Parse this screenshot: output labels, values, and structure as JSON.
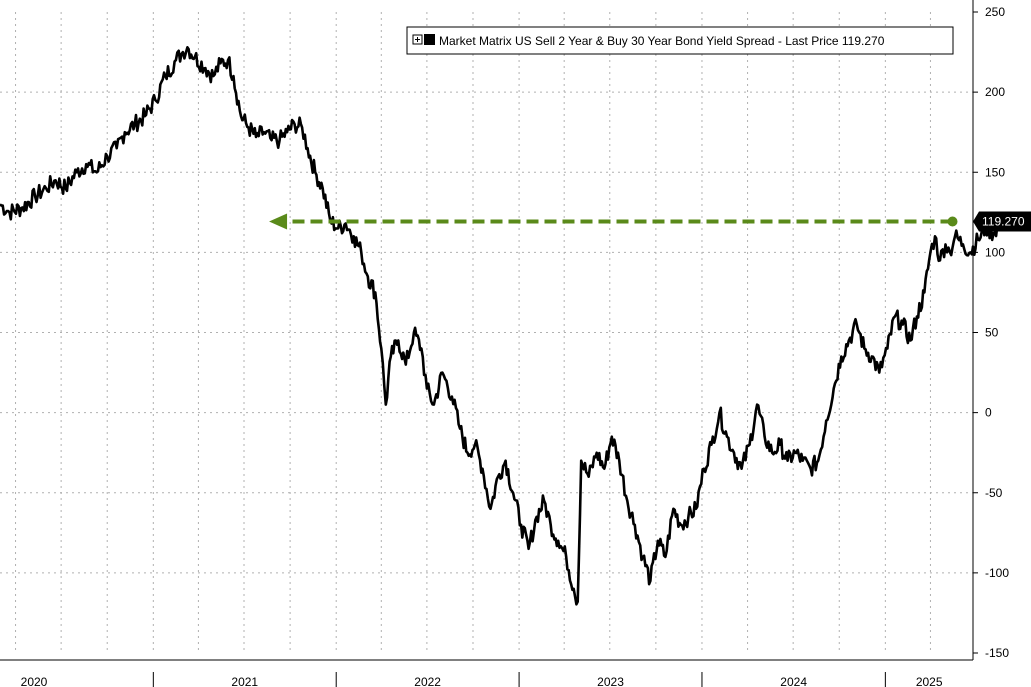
{
  "chart_data": {
    "type": "line",
    "title": "",
    "xlabel": "",
    "ylabel": "",
    "grid": true,
    "legend": "top-right",
    "legend_text": "Market Matrix US Sell 2 Year & Buy 30 Year Bond Yield Spread - Last Price 119.270",
    "last_price_label": "119.270",
    "ylim": [
      -150,
      250
    ],
    "yticks": [
      250,
      200,
      150,
      100,
      50,
      0,
      -50,
      -100,
      -150
    ],
    "x_range": [
      "2020-03-01",
      "2025-05-20"
    ],
    "year_labels": [
      "2020",
      "2021",
      "2022",
      "2023",
      "2024",
      "2025"
    ],
    "colors": {
      "line": "#000000",
      "annotation": "#5a8a1a",
      "label_bg": "#000000"
    },
    "annotation": {
      "type": "dashed-arrow",
      "from_date": "2025-05-15",
      "to_date": "2021-08-20",
      "value": 119.27
    },
    "series": [
      {
        "name": "Market Matrix US Sell 2 Year & Buy 30 Year Bond Yield Spread",
        "points": [
          [
            "2020-03-01",
            130
          ],
          [
            "2020-03-20",
            125
          ],
          [
            "2020-04-15",
            128
          ],
          [
            "2020-05-10",
            135
          ],
          [
            "2020-06-01",
            140
          ],
          [
            "2020-06-20",
            145
          ],
          [
            "2020-07-10",
            140
          ],
          [
            "2020-08-01",
            150
          ],
          [
            "2020-08-20",
            155
          ],
          [
            "2020-09-10",
            150
          ],
          [
            "2020-10-01",
            160
          ],
          [
            "2020-10-20",
            165
          ],
          [
            "2020-11-05",
            175
          ],
          [
            "2020-11-25",
            180
          ],
          [
            "2020-12-15",
            185
          ],
          [
            "2021-01-05",
            195
          ],
          [
            "2021-01-25",
            210
          ],
          [
            "2021-02-15",
            220
          ],
          [
            "2021-03-01",
            225
          ],
          [
            "2021-03-10",
            228
          ],
          [
            "2021-03-25",
            222
          ],
          [
            "2021-04-15",
            215
          ],
          [
            "2021-05-01",
            210
          ],
          [
            "2021-05-15",
            218
          ],
          [
            "2021-05-30",
            220
          ],
          [
            "2021-06-10",
            210
          ],
          [
            "2021-06-25",
            185
          ],
          [
            "2021-07-10",
            178
          ],
          [
            "2021-07-25",
            172
          ],
          [
            "2021-08-10",
            175
          ],
          [
            "2021-08-25",
            170
          ],
          [
            "2021-09-10",
            170
          ],
          [
            "2021-09-25",
            175
          ],
          [
            "2021-10-10",
            180
          ],
          [
            "2021-10-25",
            178
          ],
          [
            "2021-11-05",
            165
          ],
          [
            "2021-11-20",
            150
          ],
          [
            "2021-12-05",
            140
          ],
          [
            "2021-12-20",
            120
          ],
          [
            "2022-01-05",
            115
          ],
          [
            "2022-01-20",
            118
          ],
          [
            "2022-02-05",
            110
          ],
          [
            "2022-02-20",
            100
          ],
          [
            "2022-03-05",
            85
          ],
          [
            "2022-03-20",
            75
          ],
          [
            "2022-04-01",
            40
          ],
          [
            "2022-04-10",
            5
          ],
          [
            "2022-04-20",
            35
          ],
          [
            "2022-05-05",
            45
          ],
          [
            "2022-05-20",
            30
          ],
          [
            "2022-06-05",
            50
          ],
          [
            "2022-06-20",
            40
          ],
          [
            "2022-07-01",
            15
          ],
          [
            "2022-07-15",
            5
          ],
          [
            "2022-08-01",
            25
          ],
          [
            "2022-08-20",
            10
          ],
          [
            "2022-09-05",
            -10
          ],
          [
            "2022-09-20",
            -25
          ],
          [
            "2022-10-05",
            -20
          ],
          [
            "2022-10-20",
            -35
          ],
          [
            "2022-11-05",
            -60
          ],
          [
            "2022-11-20",
            -40
          ],
          [
            "2022-12-05",
            -30
          ],
          [
            "2022-12-20",
            -50
          ],
          [
            "2023-01-05",
            -70
          ],
          [
            "2023-01-20",
            -85
          ],
          [
            "2023-02-05",
            -65
          ],
          [
            "2023-02-20",
            -55
          ],
          [
            "2023-03-05",
            -70
          ],
          [
            "2023-03-20",
            -80
          ],
          [
            "2023-04-05",
            -90
          ],
          [
            "2023-04-20",
            -110
          ],
          [
            "2023-04-28",
            -118
          ],
          [
            "2023-05-05",
            -30
          ],
          [
            "2023-05-20",
            -40
          ],
          [
            "2023-06-05",
            -25
          ],
          [
            "2023-06-20",
            -35
          ],
          [
            "2023-07-05",
            -15
          ],
          [
            "2023-07-20",
            -30
          ],
          [
            "2023-08-05",
            -55
          ],
          [
            "2023-08-20",
            -70
          ],
          [
            "2023-09-05",
            -90
          ],
          [
            "2023-09-20",
            -105
          ],
          [
            "2023-10-05",
            -80
          ],
          [
            "2023-10-20",
            -90
          ],
          [
            "2023-11-05",
            -60
          ],
          [
            "2023-11-20",
            -70
          ],
          [
            "2023-12-05",
            -65
          ],
          [
            "2023-12-20",
            -60
          ],
          [
            "2024-01-05",
            -35
          ],
          [
            "2024-01-20",
            -20
          ],
          [
            "2024-02-05",
            0
          ],
          [
            "2024-02-20",
            -15
          ],
          [
            "2024-03-05",
            -25
          ],
          [
            "2024-03-20",
            -35
          ],
          [
            "2024-04-05",
            -20
          ],
          [
            "2024-04-20",
            5
          ],
          [
            "2024-05-05",
            -15
          ],
          [
            "2024-05-20",
            -25
          ],
          [
            "2024-06-05",
            -20
          ],
          [
            "2024-06-20",
            -30
          ],
          [
            "2024-07-05",
            -25
          ],
          [
            "2024-07-20",
            -30
          ],
          [
            "2024-08-05",
            -35
          ],
          [
            "2024-08-20",
            -30
          ],
          [
            "2024-09-05",
            -5
          ],
          [
            "2024-09-20",
            15
          ],
          [
            "2024-10-05",
            35
          ],
          [
            "2024-10-20",
            45
          ],
          [
            "2024-11-05",
            55
          ],
          [
            "2024-11-20",
            40
          ],
          [
            "2024-12-05",
            35
          ],
          [
            "2024-12-20",
            25
          ],
          [
            "2025-01-05",
            40
          ],
          [
            "2025-01-20",
            60
          ],
          [
            "2025-02-05",
            55
          ],
          [
            "2025-02-20",
            45
          ],
          [
            "2025-03-05",
            60
          ],
          [
            "2025-03-20",
            75
          ],
          [
            "2025-04-01",
            100
          ],
          [
            "2025-04-10",
            110
          ],
          [
            "2025-04-20",
            95
          ],
          [
            "2025-05-01",
            105
          ],
          [
            "2025-05-10",
            100
          ],
          [
            "2025-05-20",
            110
          ],
          [
            "2025-06-05",
            105
          ],
          [
            "2025-06-20",
            100
          ],
          [
            "2025-07-05",
            108
          ],
          [
            "2025-07-20",
            115
          ],
          [
            "2025-08-05",
            112
          ],
          [
            "2025-08-20",
            119.27
          ]
        ]
      }
    ]
  }
}
